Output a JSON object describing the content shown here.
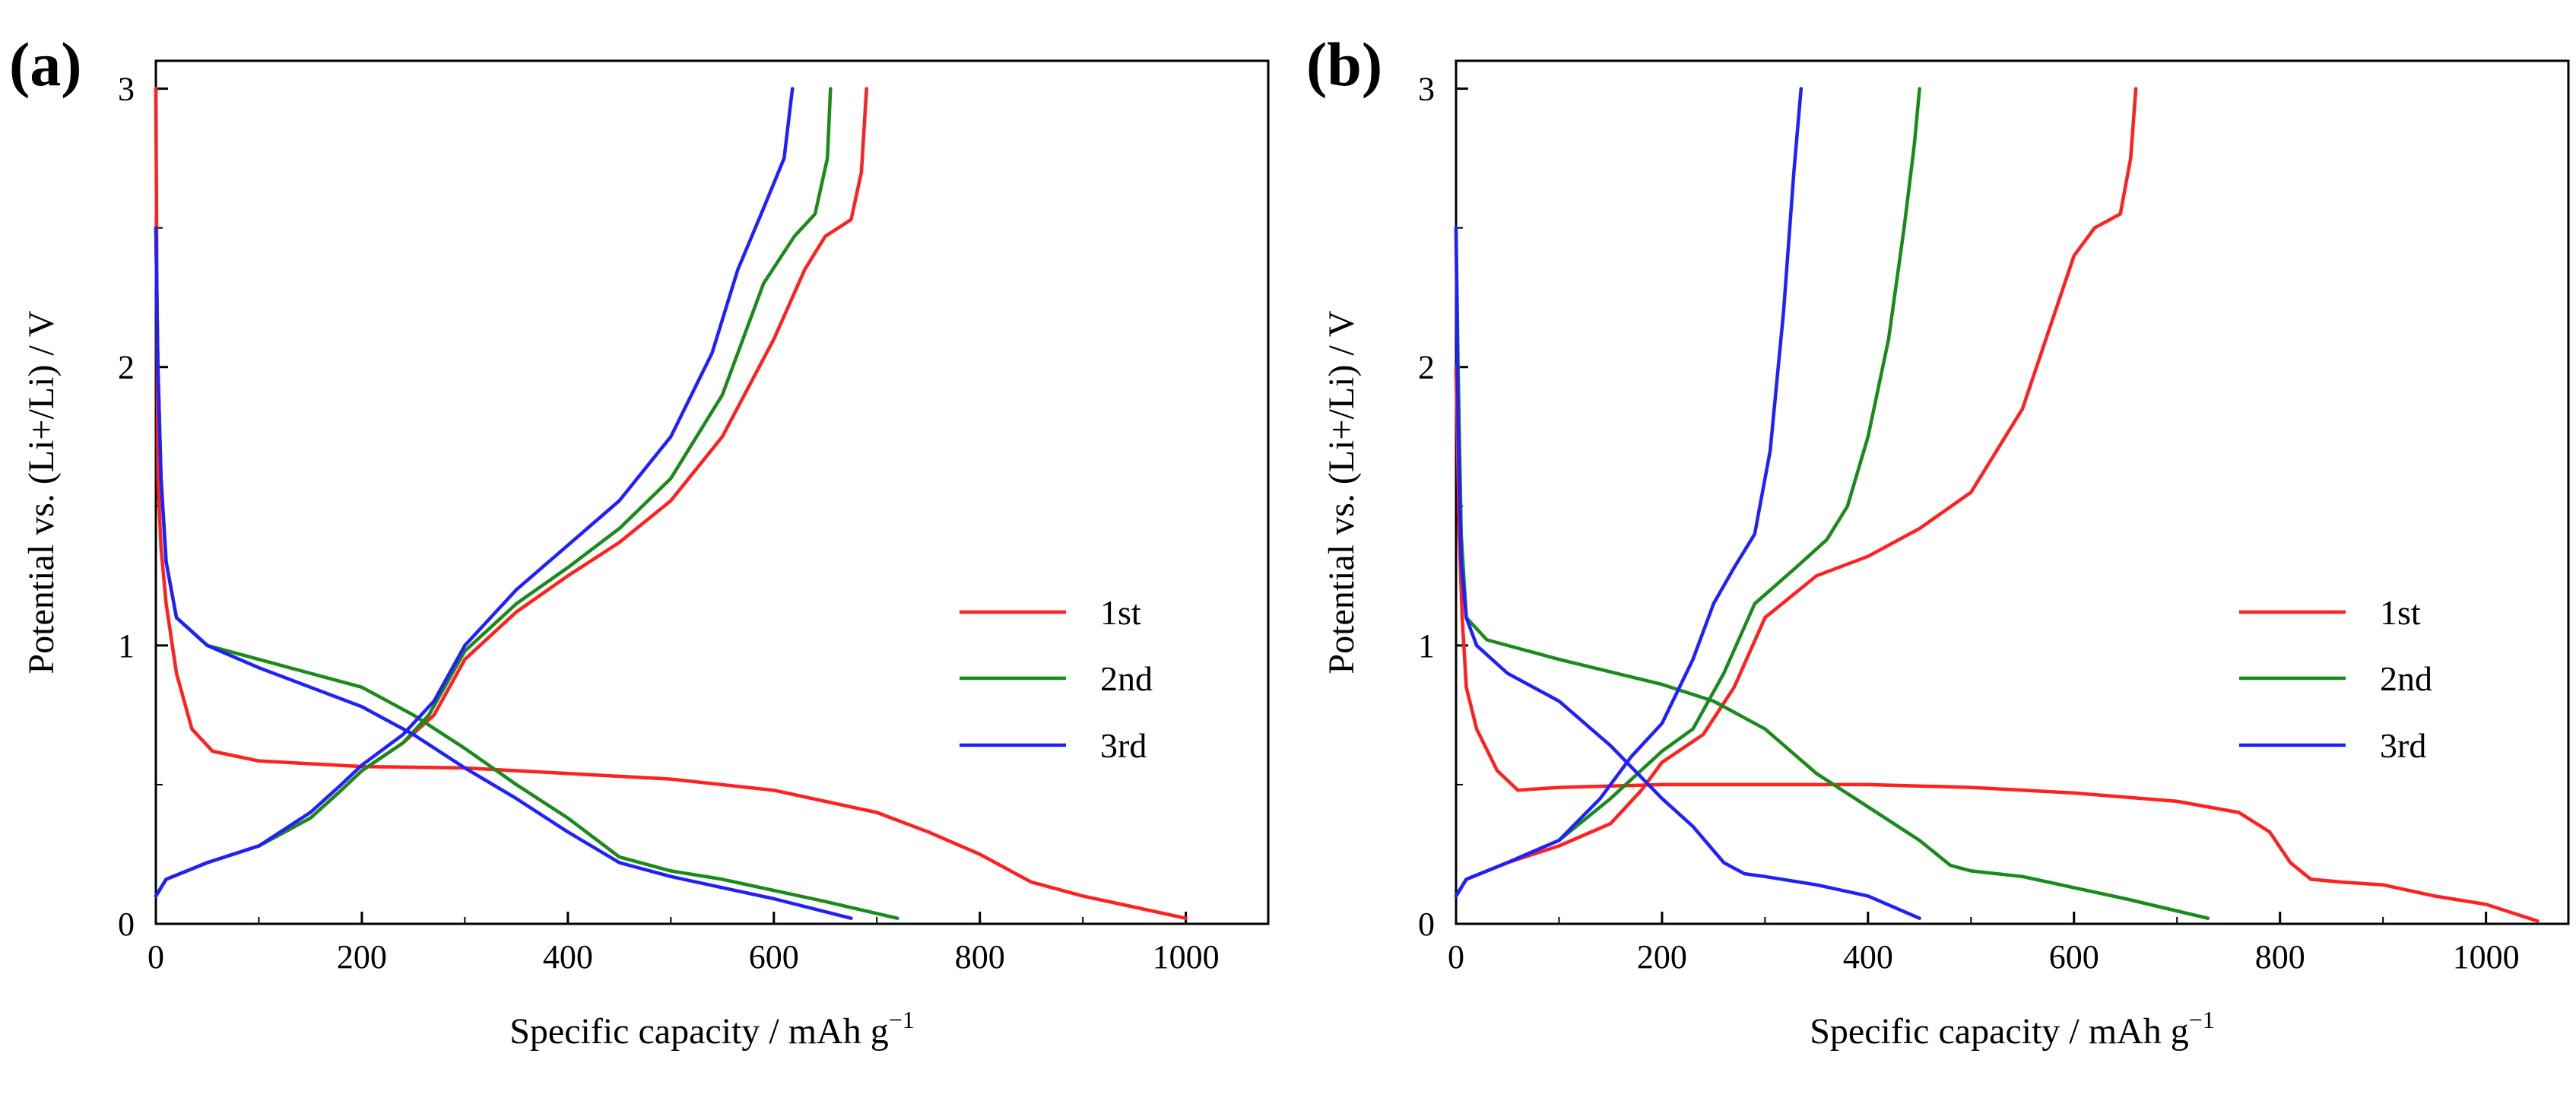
{
  "chart_data": [
    {
      "panel": "(a)",
      "type": "line",
      "xlabel": "Specific capacity / mAh g",
      "xlabel_sup": "−1",
      "ylabel": "Potential vs. (Li+/Li) / V",
      "xlim": [
        0,
        1080
      ],
      "ylim": [
        0,
        3.1
      ],
      "xticks": [
        "0",
        "200",
        "400",
        "600",
        "800",
        "1000"
      ],
      "yticks": [
        "0",
        "1",
        "2",
        "3"
      ],
      "legend": "center-right",
      "series": [
        {
          "name": "1st",
          "color": "#ff2020",
          "discharge": [
            [
              0,
              3.0
            ],
            [
              2,
              1.6
            ],
            [
              5,
              1.35
            ],
            [
              10,
              1.15
            ],
            [
              20,
              0.9
            ],
            [
              35,
              0.7
            ],
            [
              55,
              0.62
            ],
            [
              100,
              0.585
            ],
            [
              200,
              0.565
            ],
            [
              300,
              0.56
            ],
            [
              400,
              0.54
            ],
            [
              500,
              0.52
            ],
            [
              600,
              0.48
            ],
            [
              700,
              0.4
            ],
            [
              750,
              0.33
            ],
            [
              800,
              0.25
            ],
            [
              850,
              0.15
            ],
            [
              900,
              0.1
            ],
            [
              950,
              0.06
            ],
            [
              1000,
              0.02
            ]
          ],
          "charge": [
            [
              0,
              0.1
            ],
            [
              10,
              0.16
            ],
            [
              50,
              0.22
            ],
            [
              100,
              0.28
            ],
            [
              150,
              0.38
            ],
            [
              180,
              0.48
            ],
            [
              200,
              0.55
            ],
            [
              240,
              0.65
            ],
            [
              270,
              0.75
            ],
            [
              300,
              0.95
            ],
            [
              350,
              1.12
            ],
            [
              400,
              1.25
            ],
            [
              450,
              1.37
            ],
            [
              500,
              1.52
            ],
            [
              550,
              1.75
            ],
            [
              600,
              2.1
            ],
            [
              630,
              2.35
            ],
            [
              650,
              2.47
            ],
            [
              675,
              2.53
            ],
            [
              685,
              2.7
            ],
            [
              690,
              3.0
            ]
          ]
        },
        {
          "name": "2nd",
          "color": "#1a8a1a",
          "discharge": [
            [
              0,
              2.5
            ],
            [
              2,
              2.0
            ],
            [
              5,
              1.6
            ],
            [
              10,
              1.3
            ],
            [
              20,
              1.1
            ],
            [
              50,
              1.0
            ],
            [
              100,
              0.95
            ],
            [
              150,
              0.9
            ],
            [
              200,
              0.85
            ],
            [
              250,
              0.75
            ],
            [
              300,
              0.63
            ],
            [
              350,
              0.5
            ],
            [
              400,
              0.38
            ],
            [
              450,
              0.24
            ],
            [
              500,
              0.19
            ],
            [
              550,
              0.16
            ],
            [
              600,
              0.12
            ],
            [
              650,
              0.08
            ],
            [
              720,
              0.02
            ]
          ],
          "charge": [
            [
              0,
              0.1
            ],
            [
              10,
              0.16
            ],
            [
              50,
              0.22
            ],
            [
              100,
              0.28
            ],
            [
              150,
              0.38
            ],
            [
              180,
              0.48
            ],
            [
              200,
              0.55
            ],
            [
              240,
              0.65
            ],
            [
              265,
              0.75
            ],
            [
              300,
              0.98
            ],
            [
              350,
              1.15
            ],
            [
              400,
              1.28
            ],
            [
              450,
              1.42
            ],
            [
              500,
              1.6
            ],
            [
              550,
              1.9
            ],
            [
              590,
              2.3
            ],
            [
              620,
              2.47
            ],
            [
              640,
              2.55
            ],
            [
              652,
              2.75
            ],
            [
              655,
              3.0
            ]
          ]
        },
        {
          "name": "3rd",
          "color": "#2020ff",
          "discharge": [
            [
              0,
              2.5
            ],
            [
              2,
              2.0
            ],
            [
              5,
              1.6
            ],
            [
              10,
              1.3
            ],
            [
              20,
              1.1
            ],
            [
              50,
              1.0
            ],
            [
              100,
              0.92
            ],
            [
              150,
              0.85
            ],
            [
              200,
              0.78
            ],
            [
              250,
              0.68
            ],
            [
              300,
              0.56
            ],
            [
              350,
              0.45
            ],
            [
              400,
              0.33
            ],
            [
              450,
              0.22
            ],
            [
              500,
              0.17
            ],
            [
              550,
              0.13
            ],
            [
              600,
              0.09
            ],
            [
              675,
              0.02
            ]
          ],
          "charge": [
            [
              0,
              0.1
            ],
            [
              10,
              0.16
            ],
            [
              50,
              0.22
            ],
            [
              100,
              0.28
            ],
            [
              150,
              0.4
            ],
            [
              180,
              0.5
            ],
            [
              200,
              0.57
            ],
            [
              240,
              0.68
            ],
            [
              270,
              0.8
            ],
            [
              300,
              1.0
            ],
            [
              350,
              1.2
            ],
            [
              400,
              1.36
            ],
            [
              450,
              1.52
            ],
            [
              500,
              1.75
            ],
            [
              540,
              2.05
            ],
            [
              565,
              2.35
            ],
            [
              590,
              2.57
            ],
            [
              610,
              2.75
            ],
            [
              618,
              3.0
            ]
          ]
        }
      ]
    },
    {
      "panel": "(b)",
      "type": "line",
      "xlabel": "Specific capacity / mAh g",
      "xlabel_sup": "−1",
      "ylabel": "Potential vs. (Li+/Li) / V",
      "xlim": [
        0,
        1080
      ],
      "ylim": [
        0,
        3.1
      ],
      "xticks": [
        "0",
        "200",
        "400",
        "600",
        "800",
        "1000"
      ],
      "yticks": [
        "0",
        "1",
        "2",
        "3"
      ],
      "legend": "center-right",
      "series": [
        {
          "name": "1st",
          "color": "#ff2020",
          "discharge": [
            [
              0,
              2.0
            ],
            [
              3,
              1.4
            ],
            [
              6,
              1.1
            ],
            [
              10,
              0.85
            ],
            [
              20,
              0.7
            ],
            [
              40,
              0.55
            ],
            [
              60,
              0.48
            ],
            [
              100,
              0.49
            ],
            [
              200,
              0.5
            ],
            [
              300,
              0.5
            ],
            [
              400,
              0.5
            ],
            [
              500,
              0.49
            ],
            [
              600,
              0.47
            ],
            [
              700,
              0.44
            ],
            [
              760,
              0.4
            ],
            [
              790,
              0.33
            ],
            [
              810,
              0.22
            ],
            [
              830,
              0.16
            ],
            [
              860,
              0.15
            ],
            [
              900,
              0.14
            ],
            [
              950,
              0.1
            ],
            [
              1000,
              0.07
            ],
            [
              1050,
              0.01
            ]
          ],
          "charge": [
            [
              0,
              0.1
            ],
            [
              10,
              0.16
            ],
            [
              50,
              0.22
            ],
            [
              100,
              0.28
            ],
            [
              150,
              0.36
            ],
            [
              180,
              0.48
            ],
            [
              200,
              0.58
            ],
            [
              240,
              0.68
            ],
            [
              270,
              0.85
            ],
            [
              300,
              1.1
            ],
            [
              350,
              1.25
            ],
            [
              400,
              1.32
            ],
            [
              450,
              1.42
            ],
            [
              500,
              1.55
            ],
            [
              550,
              1.85
            ],
            [
              600,
              2.4
            ],
            [
              620,
              2.5
            ],
            [
              645,
              2.55
            ],
            [
              655,
              2.75
            ],
            [
              660,
              3.0
            ]
          ]
        },
        {
          "name": "2nd",
          "color": "#1a8a1a",
          "discharge": [
            [
              0,
              2.5
            ],
            [
              2,
              2.0
            ],
            [
              5,
              1.4
            ],
            [
              10,
              1.1
            ],
            [
              30,
              1.02
            ],
            [
              100,
              0.95
            ],
            [
              200,
              0.86
            ],
            [
              250,
              0.8
            ],
            [
              300,
              0.7
            ],
            [
              350,
              0.54
            ],
            [
              400,
              0.42
            ],
            [
              450,
              0.3
            ],
            [
              480,
              0.21
            ],
            [
              500,
              0.19
            ],
            [
              550,
              0.17
            ],
            [
              600,
              0.13
            ],
            [
              650,
              0.09
            ],
            [
              730,
              0.02
            ]
          ],
          "charge": [
            [
              0,
              0.1
            ],
            [
              10,
              0.16
            ],
            [
              50,
              0.22
            ],
            [
              100,
              0.3
            ],
            [
              150,
              0.45
            ],
            [
              200,
              0.62
            ],
            [
              230,
              0.7
            ],
            [
              260,
              0.9
            ],
            [
              290,
              1.15
            ],
            [
              330,
              1.28
            ],
            [
              360,
              1.38
            ],
            [
              380,
              1.5
            ],
            [
              400,
              1.75
            ],
            [
              420,
              2.1
            ],
            [
              435,
              2.5
            ],
            [
              445,
              2.8
            ],
            [
              450,
              3.0
            ]
          ]
        },
        {
          "name": "3rd",
          "color": "#2020ff",
          "discharge": [
            [
              0,
              2.5
            ],
            [
              2,
              1.8
            ],
            [
              5,
              1.3
            ],
            [
              10,
              1.1
            ],
            [
              20,
              1.0
            ],
            [
              50,
              0.9
            ],
            [
              100,
              0.8
            ],
            [
              150,
              0.64
            ],
            [
              200,
              0.45
            ],
            [
              230,
              0.35
            ],
            [
              260,
              0.22
            ],
            [
              280,
              0.18
            ],
            [
              300,
              0.17
            ],
            [
              350,
              0.14
            ],
            [
              400,
              0.1
            ],
            [
              450,
              0.02
            ]
          ],
          "charge": [
            [
              0,
              0.1
            ],
            [
              10,
              0.16
            ],
            [
              50,
              0.22
            ],
            [
              100,
              0.3
            ],
            [
              140,
              0.45
            ],
            [
              170,
              0.6
            ],
            [
              200,
              0.72
            ],
            [
              230,
              0.95
            ],
            [
              250,
              1.15
            ],
            [
              270,
              1.28
            ],
            [
              290,
              1.4
            ],
            [
              305,
              1.7
            ],
            [
              318,
              2.2
            ],
            [
              328,
              2.7
            ],
            [
              335,
              3.0
            ]
          ]
        }
      ]
    }
  ]
}
